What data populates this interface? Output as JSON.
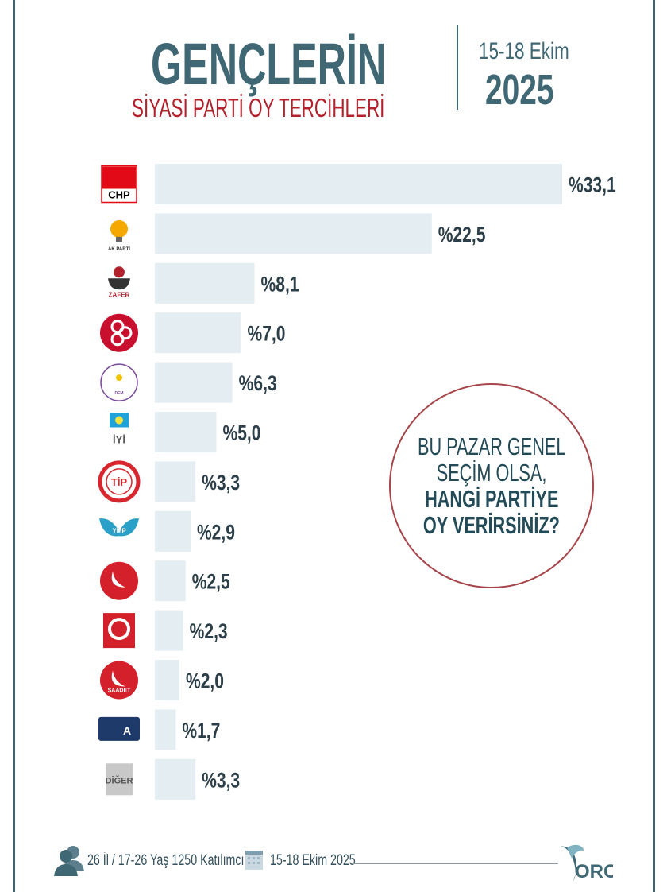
{
  "header": {
    "title": "GENÇLERİN",
    "subtitle": "SİYASİ PARTİ OY TERCİHLERİ",
    "date_range": "15-18 Ekim",
    "year": "2025"
  },
  "question": {
    "line1": "BU PAZAR GENEL",
    "line2": "SEÇİM OLSA,",
    "line3": "HANGİ PARTİYE",
    "line4": "OY VERİRSİNİZ?"
  },
  "footer": {
    "sample": "26 İl / 17-26 Yaş 1250 Katılımcı",
    "dates": "15-18 Ekim 2025",
    "brand": "ORC",
    "icons": [
      "people-icon",
      "calendar-icon",
      "orc-logo"
    ]
  },
  "colors": {
    "bar": "#e3edf2",
    "title": "#3f6874",
    "subtitle": "#b3222c",
    "label": "#2c3f48",
    "circle_border": "#a6464b"
  },
  "chart_data": {
    "type": "bar",
    "orientation": "horizontal",
    "categories": [
      "CHP",
      "AK PARTİ",
      "ZAFER PARTİSİ",
      "MHP",
      "DEM PARTİ",
      "İYİ PARTİ",
      "TİP",
      "YERLİ ve MİLLİ PARTİ",
      "YENİDEN REFAH",
      "BÜYÜK BİRLİK PARTİSİ",
      "SAADET",
      "ANAHTAR PARTİ",
      "DİĞER"
    ],
    "values": [
      33.1,
      22.5,
      8.1,
      7.0,
      6.3,
      5.0,
      3.3,
      2.9,
      2.5,
      2.3,
      2.0,
      1.7,
      3.3
    ],
    "data_labels": [
      "%33,1",
      "%22,5",
      "%8,1",
      "%7,0",
      "%6,3",
      "%5,0",
      "%3,3",
      "%2,9",
      "%2,5",
      "%2,3",
      "%2,0",
      "%1,7",
      "%3,3"
    ],
    "logo_colors": [
      "#e30a17",
      "#f5a800",
      "#b3222c",
      "#c8102e",
      "#7a4c9a",
      "#1fa3d9",
      "#d7262e",
      "#2aa0c8",
      "#d3202a",
      "#d3202a",
      "#d3202a",
      "#1e3a6b",
      "#c8c8c8"
    ],
    "logo_text": [
      "CHP",
      "AK PARTİ",
      "ZAFER",
      "",
      "DEM",
      "İYİ",
      "TİP",
      "YMP",
      "",
      "",
      "SAADET",
      "A",
      "DİĞER"
    ],
    "unit": "%",
    "xlim": [
      0,
      33.1
    ],
    "grid": false,
    "legend": "none"
  }
}
